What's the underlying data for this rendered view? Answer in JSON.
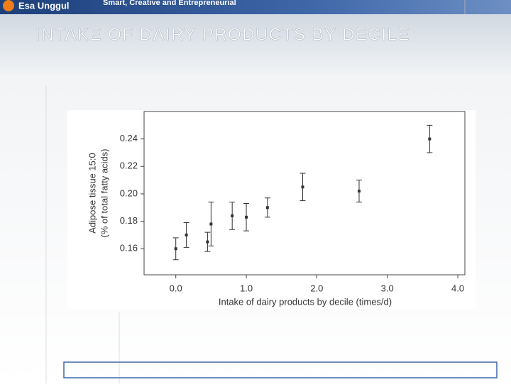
{
  "header": {
    "logo": "Esa Unggul",
    "tagline": "Smart, Creative and Entrepreneurial"
  },
  "chart_data": {
    "type": "scatter",
    "title": "INTAKE OF DAIRY PRODUCTS BY DECILE",
    "x_label": "Intake of dairy products by decile (times/d)",
    "y_label": [
      "Adipose tissue 15:0",
      "(% of total fatty acids)"
    ],
    "x": [
      0.0,
      0.15,
      0.45,
      0.5,
      0.8,
      1.0,
      1.3,
      1.8,
      2.6,
      3.6
    ],
    "values": [
      0.16,
      0.17,
      0.165,
      0.178,
      0.184,
      0.183,
      0.19,
      0.205,
      0.202,
      0.24
    ],
    "errors": [
      0.008,
      0.009,
      0.007,
      0.016,
      0.01,
      0.01,
      0.007,
      0.01,
      0.008,
      0.01
    ],
    "color": "#333333",
    "xlim": [
      -0.45,
      4.1
    ],
    "ylim": [
      0.141,
      0.26
    ],
    "xticks": [
      {
        "value": 0,
        "label": "0.0"
      },
      {
        "value": 1,
        "label": "1.0"
      },
      {
        "value": 2,
        "label": "2.0"
      },
      {
        "value": 3,
        "label": "3.0"
      },
      {
        "value": 4,
        "label": "4.0"
      }
    ],
    "yticks": [
      0.16,
      0.18,
      {
        "value": 0.2,
        "label": "0.20"
      },
      0.22,
      0.24
    ]
  }
}
